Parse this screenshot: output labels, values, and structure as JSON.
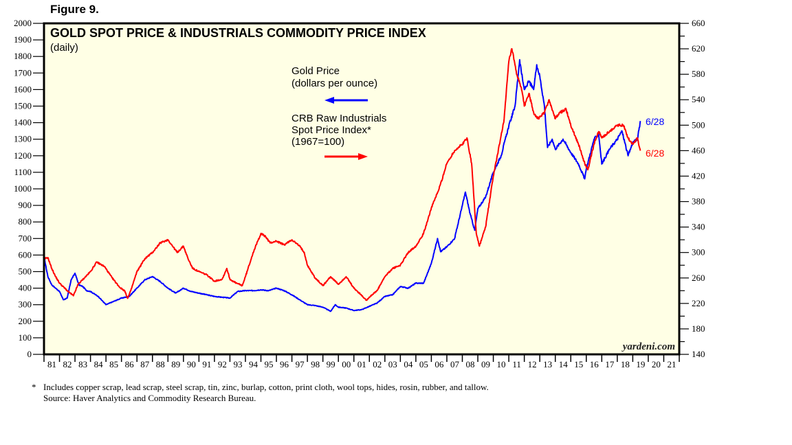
{
  "figure_label": "Figure 9.",
  "footnotes": {
    "marker": "*",
    "note": "Includes copper scrap, lead scrap, steel scrap, tin, zinc, burlap, cotton, print cloth, wool tops, hides, rosin, rubber, and tallow.",
    "source": "Source: Haver Analytics and Commodity Research Bureau."
  },
  "chart_data": {
    "type": "line",
    "title": "GOLD SPOT PRICE & INDUSTRIALS COMMODITY PRICE INDEX",
    "subtitle": "(daily)",
    "watermark": "yardeni.com",
    "xlabel": "",
    "x_range": [
      1981,
      2022
    ],
    "x_tick_labels": [
      "81",
      "82",
      "83",
      "84",
      "85",
      "86",
      "87",
      "88",
      "89",
      "90",
      "91",
      "92",
      "93",
      "94",
      "95",
      "96",
      "97",
      "98",
      "99",
      "00",
      "01",
      "02",
      "03",
      "04",
      "05",
      "06",
      "07",
      "08",
      "09",
      "10",
      "11",
      "12",
      "13",
      "14",
      "15",
      "16",
      "17",
      "18",
      "19",
      "20",
      "21"
    ],
    "y_left": {
      "label": "Gold Price (dollars per ounce)",
      "range": [
        0,
        2000
      ],
      "ticks": [
        0,
        100,
        200,
        300,
        400,
        500,
        600,
        700,
        800,
        900,
        1000,
        1100,
        1200,
        1300,
        1400,
        1500,
        1600,
        1700,
        1800,
        1900,
        2000
      ]
    },
    "y_right": {
      "label": "CRB Raw Industrials Spot Price Index (1967=100)",
      "range": [
        140,
        660
      ],
      "ticks": [
        140,
        180,
        220,
        260,
        300,
        340,
        380,
        420,
        460,
        500,
        540,
        580,
        620,
        660
      ]
    },
    "grid": false,
    "legend": [
      {
        "name": "Gold Price",
        "lines": [
          "Gold Price",
          "(dollars per ounce)"
        ],
        "axis": "left",
        "color": "#0000ff",
        "arrow": "left"
      },
      {
        "name": "CRB Raw Industrials Spot Price Index*",
        "lines": [
          "CRB Raw Industrials",
          "Spot Price Index*",
          "(1967=100)"
        ],
        "axis": "right",
        "color": "#ff0000",
        "arrow": "right"
      }
    ],
    "legend_placement": "top-center",
    "series": [
      {
        "name": "Gold Price",
        "axis": "left",
        "color": "#0000ff",
        "end_label": "6/28",
        "x": [
          1981.0,
          1981.25,
          1981.5,
          1981.75,
          1982.0,
          1982.25,
          1982.5,
          1982.75,
          1983.0,
          1983.25,
          1983.5,
          1983.75,
          1984.0,
          1984.5,
          1985.0,
          1985.5,
          1986.0,
          1986.5,
          1987.0,
          1987.5,
          1988.0,
          1988.5,
          1989.0,
          1989.5,
          1990.0,
          1990.5,
          1991.0,
          1991.5,
          1992.0,
          1992.5,
          1993.0,
          1993.5,
          1994.0,
          1994.5,
          1995.0,
          1995.5,
          1996.0,
          1996.5,
          1997.0,
          1997.5,
          1998.0,
          1998.5,
          1999.0,
          1999.5,
          1999.8,
          2000.0,
          2000.5,
          2001.0,
          2001.5,
          2002.0,
          2002.5,
          2003.0,
          2003.5,
          2004.0,
          2004.5,
          2005.0,
          2005.5,
          2006.0,
          2006.4,
          2006.6,
          2007.0,
          2007.5,
          2008.0,
          2008.2,
          2008.5,
          2008.8,
          2009.0,
          2009.5,
          2010.0,
          2010.5,
          2011.0,
          2011.4,
          2011.7,
          2011.9,
          2012.0,
          2012.3,
          2012.6,
          2012.8,
          2013.0,
          2013.3,
          2013.5,
          2013.8,
          2014.0,
          2014.5,
          2015.0,
          2015.5,
          2015.9,
          2016.0,
          2016.5,
          2016.8,
          2017.0,
          2017.5,
          2018.0,
          2018.3,
          2018.7,
          2019.0,
          2019.3,
          2019.49
        ],
        "values": [
          590,
          470,
          420,
          400,
          380,
          330,
          340,
          450,
          490,
          420,
          410,
          385,
          380,
          350,
          300,
          320,
          340,
          350,
          400,
          450,
          470,
          440,
          400,
          370,
          400,
          380,
          370,
          360,
          350,
          345,
          340,
          380,
          385,
          385,
          390,
          385,
          400,
          385,
          360,
          330,
          300,
          295,
          285,
          260,
          300,
          285,
          280,
          265,
          270,
          290,
          310,
          350,
          360,
          410,
          400,
          430,
          430,
          550,
          700,
          620,
          650,
          700,
          900,
          980,
          850,
          750,
          880,
          950,
          1100,
          1200,
          1380,
          1500,
          1780,
          1650,
          1600,
          1650,
          1600,
          1750,
          1680,
          1500,
          1250,
          1300,
          1240,
          1300,
          1220,
          1150,
          1060,
          1120,
          1300,
          1330,
          1150,
          1240,
          1300,
          1350,
          1200,
          1280,
          1300,
          1410
        ]
      },
      {
        "name": "CRB Raw Industrials Spot Price Index",
        "axis": "right",
        "color": "#ff0000",
        "end_label": "6/28",
        "x": [
          1981.0,
          1981.25,
          1981.5,
          1981.75,
          1982.0,
          1982.5,
          1982.9,
          1983.2,
          1983.6,
          1984.0,
          1984.4,
          1984.9,
          1985.4,
          1985.9,
          1986.2,
          1986.4,
          1986.6,
          1987.0,
          1987.5,
          1988.0,
          1988.5,
          1989.0,
          1989.3,
          1989.6,
          1990.0,
          1990.3,
          1990.6,
          1991.0,
          1991.5,
          1992.0,
          1992.5,
          1992.8,
          1993.0,
          1993.4,
          1993.8,
          1994.0,
          1994.5,
          1995.0,
          1995.3,
          1995.6,
          1996.0,
          1996.5,
          1997.0,
          1997.5,
          1997.8,
          1998.0,
          1998.5,
          1999.0,
          1999.5,
          2000.0,
          2000.5,
          2001.0,
          2001.4,
          2001.8,
          2002.0,
          2002.5,
          2003.0,
          2003.5,
          2004.0,
          2004.5,
          2005.0,
          2005.5,
          2006.0,
          2006.5,
          2007.0,
          2007.5,
          2008.0,
          2008.3,
          2008.6,
          2008.9,
          2009.1,
          2009.5,
          2010.0,
          2010.4,
          2010.7,
          2011.0,
          2011.2,
          2011.5,
          2011.8,
          2012.0,
          2012.3,
          2012.6,
          2012.9,
          2013.3,
          2013.6,
          2014.0,
          2014.3,
          2014.7,
          2015.0,
          2015.5,
          2015.9,
          2016.1,
          2016.5,
          2016.8,
          2017.0,
          2017.5,
          2018.0,
          2018.4,
          2018.7,
          2019.0,
          2019.3,
          2019.49
        ],
        "values": [
          290,
          292,
          275,
          262,
          252,
          240,
          232,
          250,
          260,
          270,
          285,
          278,
          260,
          245,
          240,
          228,
          240,
          270,
          290,
          300,
          315,
          320,
          310,
          300,
          310,
          290,
          275,
          270,
          265,
          255,
          258,
          275,
          258,
          252,
          248,
          262,
          300,
          330,
          325,
          315,
          318,
          312,
          320,
          310,
          300,
          280,
          260,
          248,
          262,
          250,
          262,
          244,
          235,
          225,
          230,
          240,
          262,
          275,
          280,
          300,
          310,
          330,
          370,
          400,
          440,
          460,
          470,
          480,
          440,
          330,
          310,
          340,
          420,
          470,
          510,
          600,
          620,
          580,
          560,
          530,
          550,
          520,
          510,
          520,
          540,
          510,
          520,
          525,
          500,
          470,
          440,
          430,
          470,
          490,
          480,
          490,
          500,
          500,
          480,
          470,
          480,
          460
        ]
      }
    ]
  }
}
